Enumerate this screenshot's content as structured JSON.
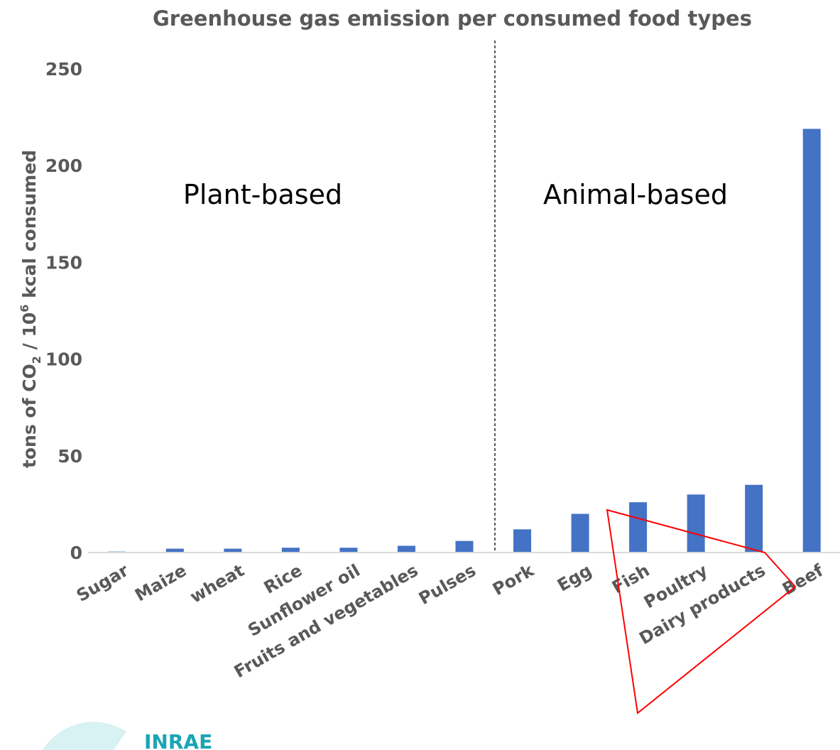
{
  "logo": {
    "text": "INRAE",
    "color": "#1aa5b5",
    "emblem_color": "#d8f1f3"
  },
  "colors": {
    "bar": "#4472c4",
    "text": "#595959",
    "axis": "#d9d9d9",
    "highlight": "#ff0000"
  },
  "chart_data": {
    "type": "bar",
    "title": "Greenhouse gas emission per consumed food types",
    "xlabel": "",
    "ylabel": {
      "prefix": "tons of  CO",
      "sub": "2",
      "mid": " / 10",
      "sup": "6",
      "suffix": " kcal consumed"
    },
    "ylim": [
      0,
      250
    ],
    "yticks": [
      0,
      50,
      100,
      150,
      200,
      250
    ],
    "grid": false,
    "categories": [
      "Sugar",
      "Maize",
      "wheat",
      "Rice",
      "Sunflower oil",
      "Fruits and vegetables",
      "Pulses",
      "Pork",
      "Egg",
      "Fish",
      "Poultry",
      "Dairy products",
      "Beef"
    ],
    "values": [
      0.5,
      2,
      2,
      2.5,
      2.5,
      3.5,
      6,
      12,
      20,
      26,
      30,
      35,
      219
    ],
    "groups": [
      {
        "label": "Plant-based",
        "from": 0,
        "to": 6
      },
      {
        "label": "Animal-based",
        "from": 7,
        "to": 12
      }
    ],
    "divider_after_index": 6,
    "highlighted_category": "Dairy products"
  }
}
